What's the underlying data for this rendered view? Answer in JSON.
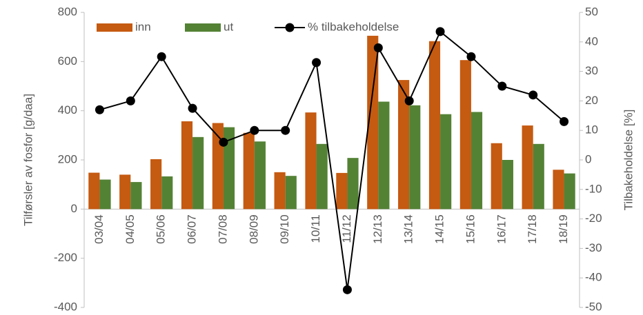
{
  "chart_data": {
    "type": "bar",
    "categories": [
      "03/04",
      "04/05",
      "05/06",
      "06/07",
      "07/08",
      "08/09",
      "09/10",
      "10/11",
      "11/12",
      "12/13",
      "13/14",
      "14/15",
      "15/16",
      "16/17",
      "17/18",
      "18/19"
    ],
    "series": [
      {
        "name": "inn",
        "type": "bar",
        "color": "#c55a11",
        "values": [
          148,
          140,
          203,
          357,
          350,
          310,
          150,
          393,
          147,
          705,
          525,
          683,
          606,
          268,
          340,
          160
        ]
      },
      {
        "name": "ut",
        "type": "bar",
        "color": "#548235",
        "values": [
          120,
          110,
          133,
          293,
          333,
          275,
          135,
          265,
          208,
          437,
          422,
          386,
          395,
          200,
          265,
          145
        ]
      },
      {
        "name": "% tilbakeholdelse",
        "type": "line",
        "axis": "y2",
        "color": "#000000",
        "values": [
          17,
          20,
          35,
          17.5,
          6,
          10,
          10,
          33,
          -44,
          38,
          20,
          43.5,
          35,
          25,
          22,
          13
        ]
      }
    ],
    "ylabel": "Tilførsler av fosfor [g/daa]",
    "y2label": "Tilbakeholdelse [%]",
    "ylim": [
      -400,
      800
    ],
    "yticks": [
      -400,
      -200,
      0,
      200,
      400,
      600,
      800
    ],
    "y2lim": [
      -50,
      50
    ],
    "y2ticks": [
      -50,
      -40,
      -30,
      -20,
      -10,
      0,
      10,
      20,
      30,
      40,
      50
    ],
    "legend": "top",
    "grid": false
  }
}
